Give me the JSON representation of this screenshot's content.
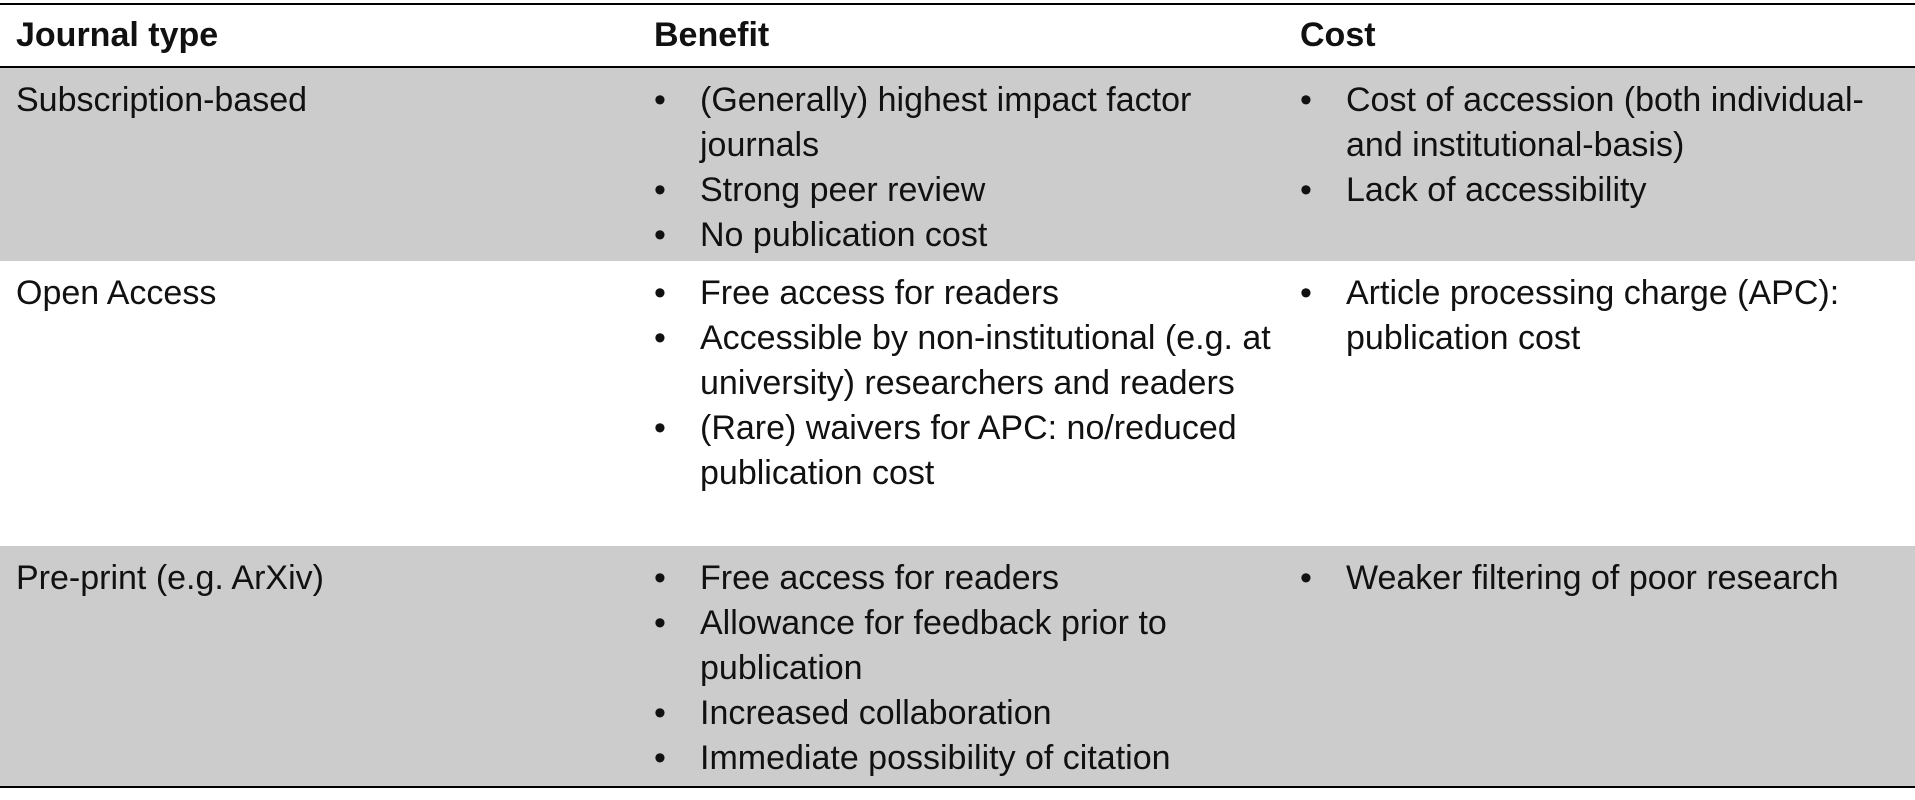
{
  "table": {
    "headers": {
      "type": "Journal type",
      "benefit": "Benefit",
      "cost": "Cost"
    },
    "rows": [
      {
        "type": "Subscription-based",
        "benefits": [
          "(Generally) highest impact factor journals",
          "Strong peer review",
          "No publication cost"
        ],
        "costs": [
          "Cost of accession (both individual- and institutional-basis)",
          "Lack of accessibility"
        ]
      },
      {
        "type": "Open Access",
        "benefits": [
          "Free access for readers",
          "Accessible by non-institutional (e.g. at university) researchers and readers",
          "(Rare) waivers for APC: no/reduced publication cost"
        ],
        "costs": [
          "Article processing charge (APC): publication cost"
        ]
      },
      {
        "type": "Pre-print (e.g. ArXiv)",
        "benefits": [
          "Free access for readers",
          "Allowance for feedback prior to publication",
          "Increased collaboration",
          "Immediate possibility of citation"
        ],
        "costs": [
          "Weaker filtering of poor research"
        ]
      }
    ],
    "bullet_char": "•",
    "shading_color": "#cccccc"
  }
}
